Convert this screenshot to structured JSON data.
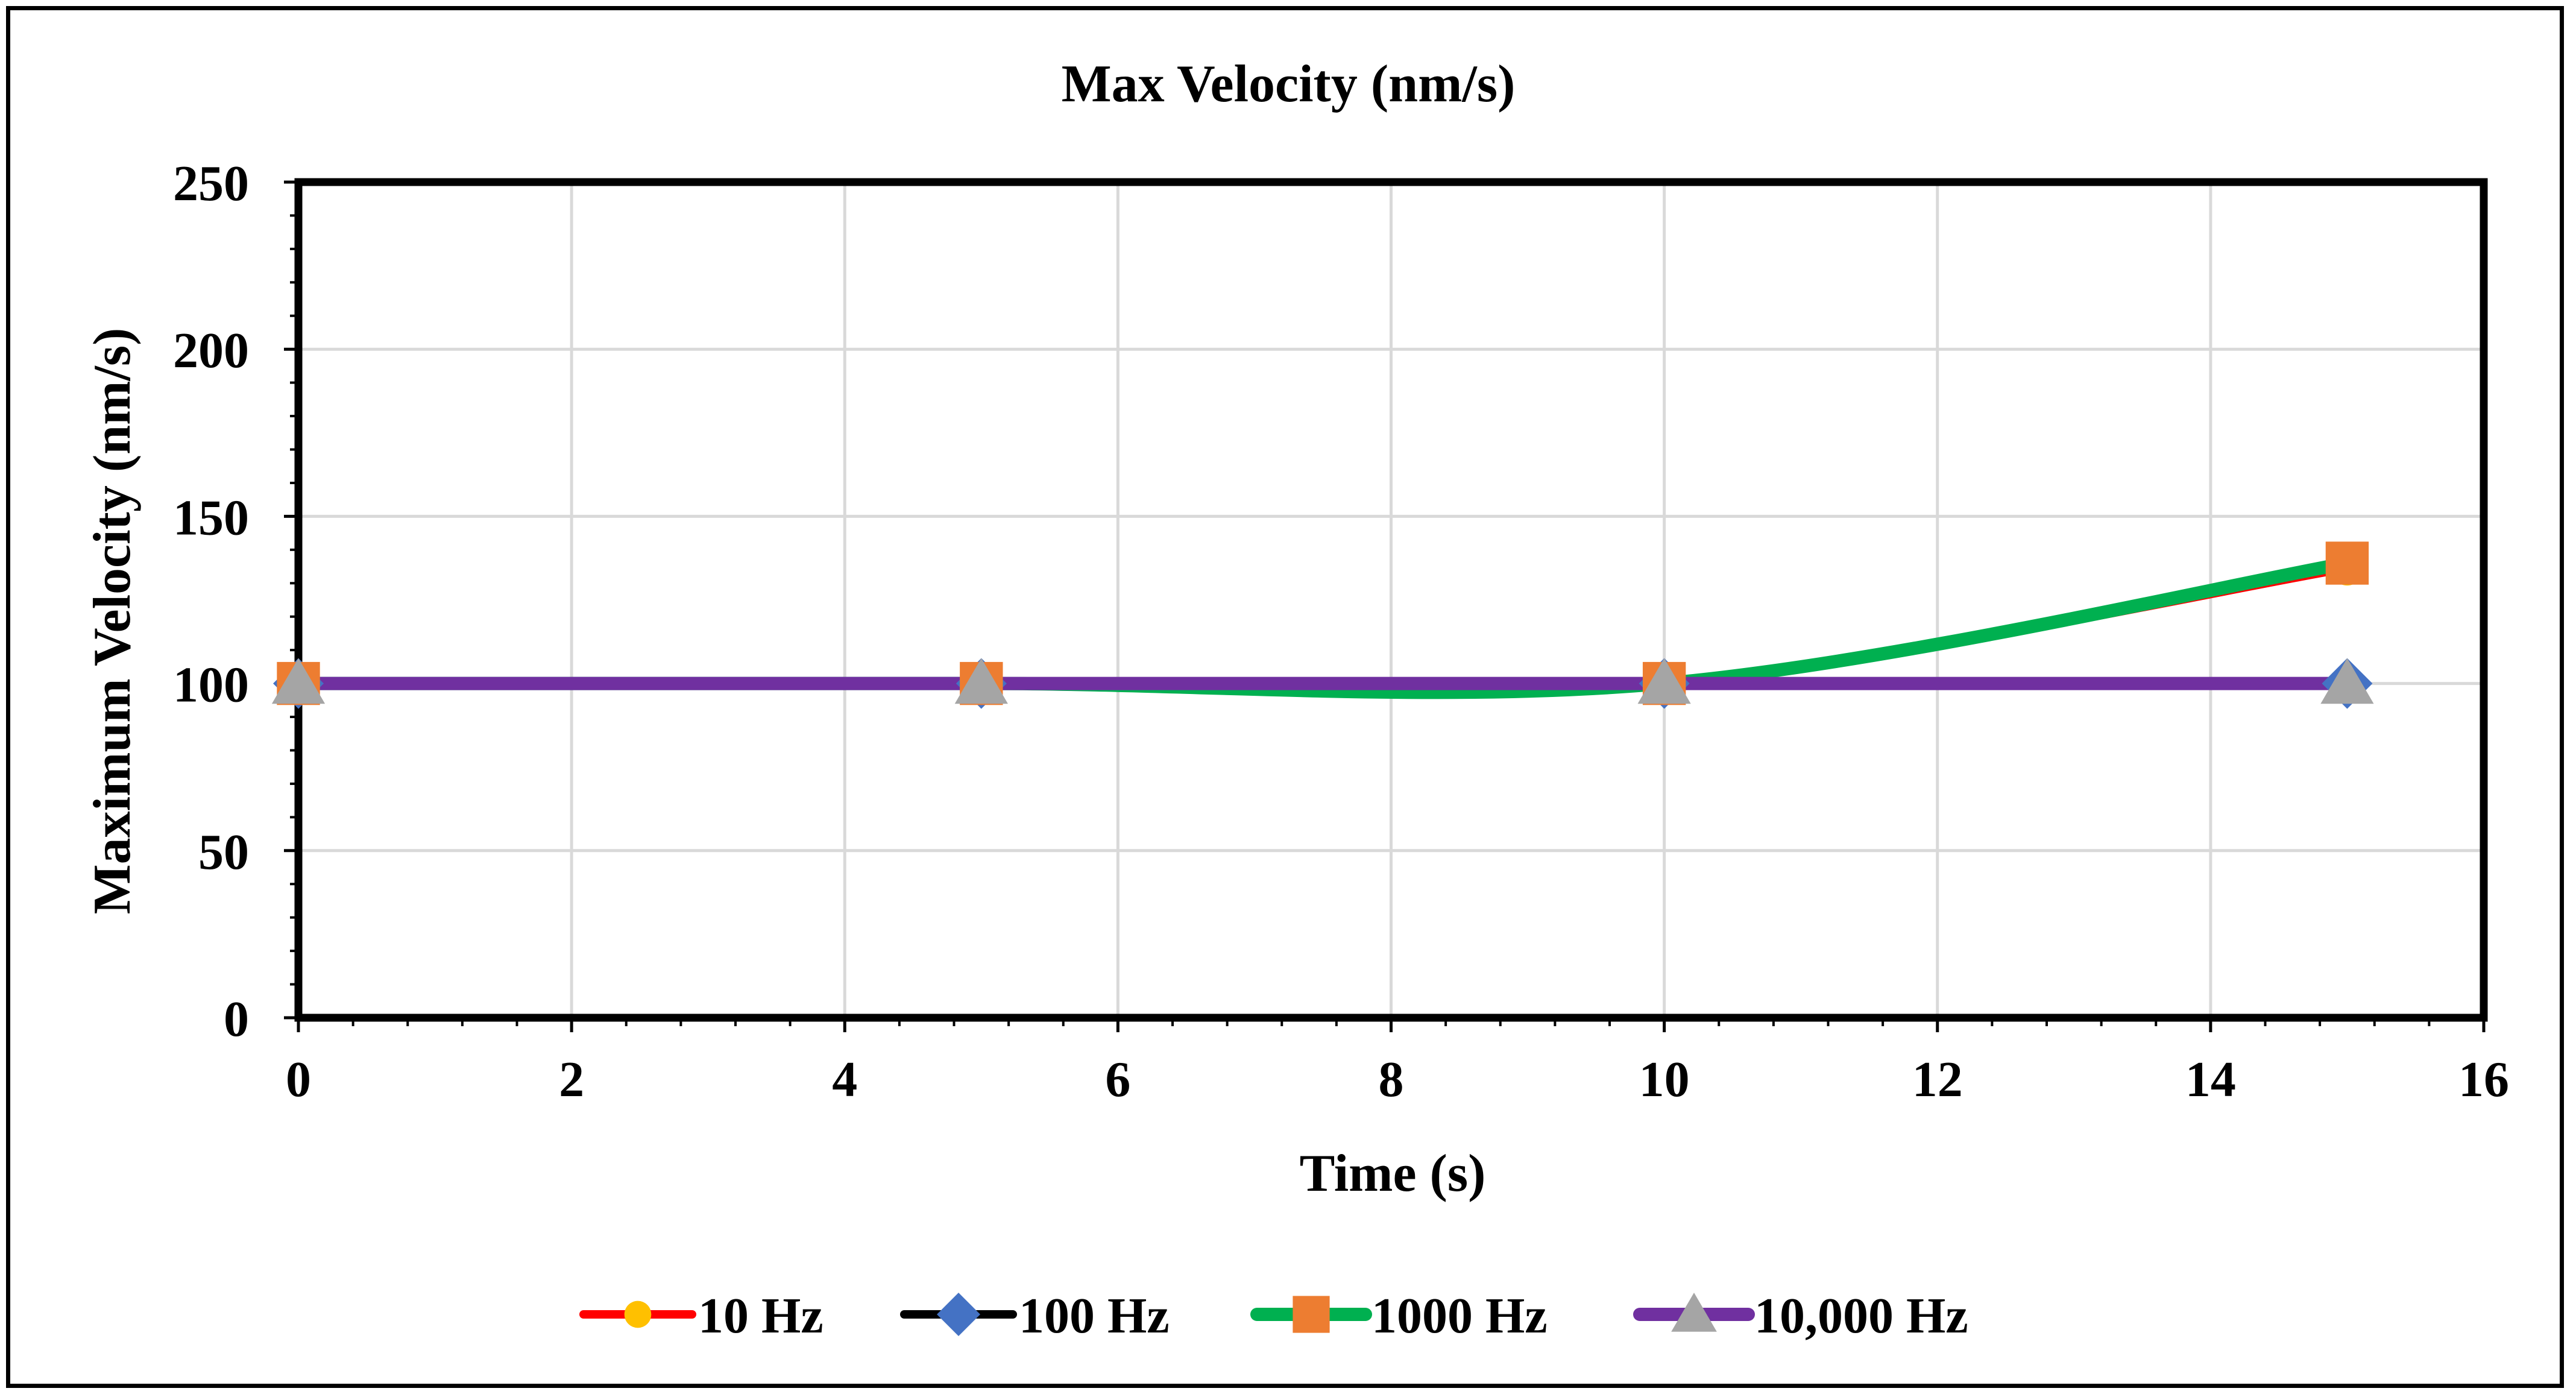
{
  "chart_data": {
    "type": "line",
    "title": "Max Velocity (nm/s)",
    "xlabel": "Time (s)",
    "ylabel": "Maximum Velocity (nm/s)",
    "xlim": [
      0,
      16
    ],
    "ylim": [
      0,
      250
    ],
    "x_ticks": [
      0,
      2,
      4,
      6,
      8,
      10,
      12,
      14,
      16
    ],
    "y_ticks": [
      0,
      50,
      100,
      150,
      200,
      250
    ],
    "x_tick_labels": [
      "0",
      "2",
      "4",
      "6",
      "8",
      "10",
      "12",
      "14",
      "16"
    ],
    "y_tick_labels": [
      "0",
      "50",
      "100",
      "150",
      "200",
      "250"
    ],
    "grid": true,
    "smoothed": true,
    "legend_position": "bottom",
    "series": [
      {
        "name": "10 Hz",
        "line_color": "#ff0000",
        "marker": "circle",
        "marker_color": "#ffc000",
        "x": [
          0,
          5,
          10,
          15
        ],
        "values": [
          100,
          100,
          100,
          134
        ]
      },
      {
        "name": "100 Hz",
        "line_color": "#000000",
        "marker": "diamond",
        "marker_color": "#4472c4",
        "x": [
          0,
          5,
          10,
          15
        ],
        "values": [
          100,
          100,
          100,
          100
        ]
      },
      {
        "name": "1000 Hz",
        "line_color": "#00b050",
        "marker": "square",
        "marker_color": "#ed7d31",
        "x": [
          0,
          5,
          10,
          15
        ],
        "values": [
          100,
          100,
          100,
          136
        ]
      },
      {
        "name": "10,000 Hz",
        "line_color": "#7030a0",
        "marker": "triangle",
        "marker_color": "#a5a5a5",
        "x": [
          0,
          5,
          10,
          15
        ],
        "values": [
          100,
          100,
          100,
          100
        ]
      }
    ]
  }
}
